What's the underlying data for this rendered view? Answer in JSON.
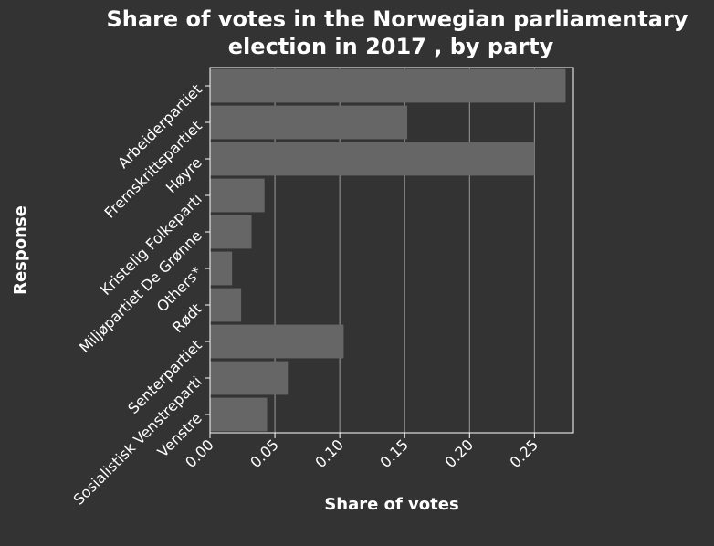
{
  "chart_data": {
    "type": "bar",
    "orientation": "horizontal",
    "title_lines": [
      "Share of votes in the Norwegian parliamentary",
      "election in 2017 , by party"
    ],
    "xlabel": "Share of votes",
    "ylabel": "Response",
    "categories": [
      "Arbeiderpartiet",
      "Fremskrittspartiet",
      "Høyre",
      "Kristelig Folkeparti",
      "Miljøpartiet De Grønne",
      "Others*",
      "Rødt",
      "Senterpartiet",
      "Sosialistisk Venstreparti",
      "Venstre"
    ],
    "values": [
      0.274,
      0.152,
      0.25,
      0.042,
      0.032,
      0.017,
      0.024,
      0.103,
      0.06,
      0.044
    ],
    "xlim": [
      0,
      0.28
    ],
    "xticks": [
      0,
      0.05,
      0.1,
      0.15,
      0.2,
      0.25
    ],
    "xtick_labels": [
      "0.00",
      "0.05",
      "0.10",
      "0.15",
      "0.20",
      "0.25"
    ],
    "grid": true,
    "colors": {
      "background": "#333333",
      "bar": "#666666",
      "grid": "#9a9a9a",
      "text": "#ffffff"
    }
  }
}
